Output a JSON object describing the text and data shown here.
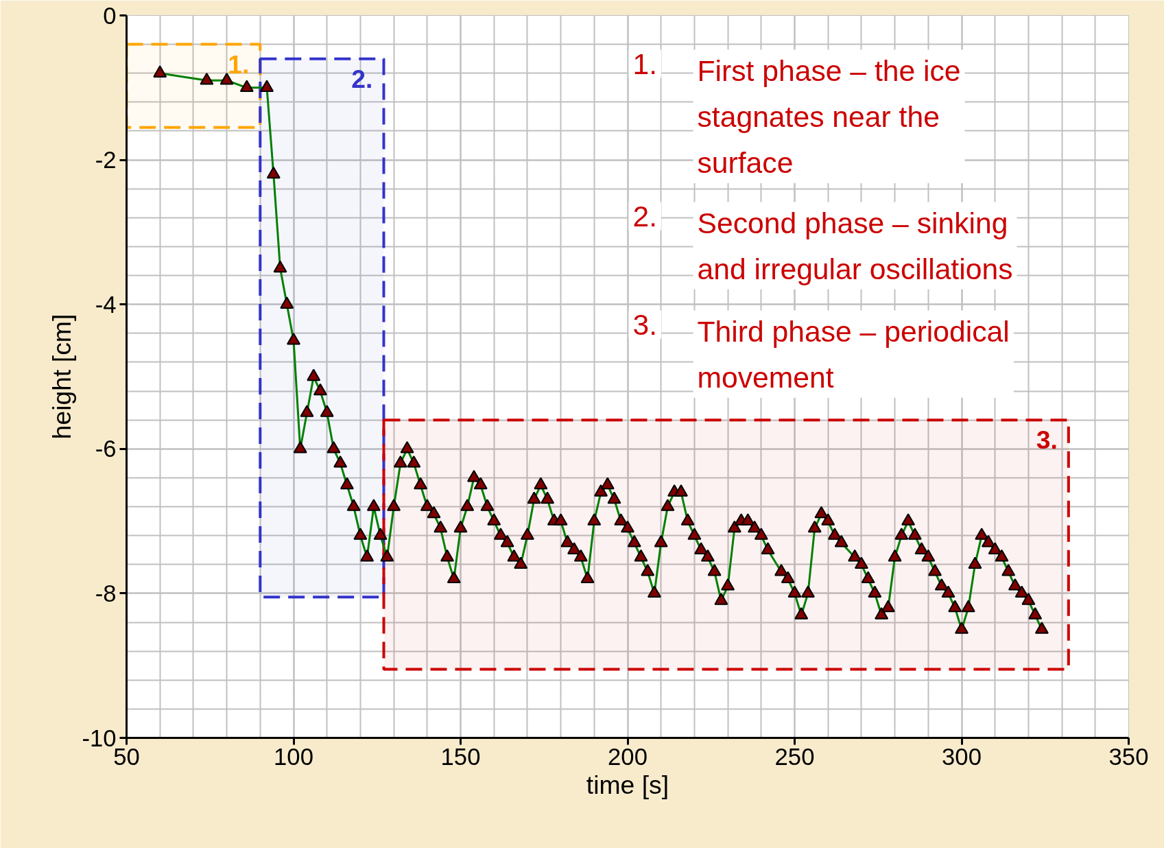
{
  "chart_data": {
    "type": "line",
    "xlabel": "time [s]",
    "ylabel": "height [cm]",
    "x": [
      60,
      74,
      80,
      86,
      92,
      94,
      96,
      98,
      100,
      102,
      104,
      106,
      108,
      110,
      112,
      114,
      116,
      118,
      120,
      122,
      124,
      126,
      128,
      130,
      132,
      134,
      136,
      138,
      140,
      142,
      144,
      146,
      148,
      150,
      152,
      154,
      156,
      158,
      160,
      162,
      164,
      166,
      168,
      170,
      172,
      174,
      176,
      178,
      180,
      182,
      184,
      186,
      188,
      190,
      192,
      194,
      196,
      198,
      200,
      202,
      204,
      206,
      208,
      210,
      212,
      214,
      216,
      218,
      220,
      222,
      224,
      226,
      228,
      230,
      232,
      234,
      236,
      238,
      240,
      242,
      246,
      248,
      250,
      252,
      254,
      256,
      258,
      260,
      262,
      264,
      268,
      270,
      272,
      274,
      276,
      278,
      280,
      282,
      284,
      286,
      288,
      290,
      292,
      294,
      296,
      298,
      300,
      302,
      304,
      306,
      308,
      310,
      312,
      314,
      316,
      318,
      320,
      322,
      324
    ],
    "series": [
      {
        "color": "#008000",
        "values": [
          -0.8,
          -0.9,
          -0.9,
          -1.0,
          -1.0,
          -2.2,
          -3.5,
          -4.0,
          -4.5,
          -6.0,
          -5.5,
          -5.0,
          -5.2,
          -5.5,
          -6.0,
          -6.2,
          -6.5,
          -6.8,
          -7.2,
          -7.5,
          -6.8,
          -7.2,
          -7.5,
          -6.8,
          -6.2,
          -6.0,
          -6.2,
          -6.5,
          -6.8,
          -6.9,
          -7.1,
          -7.5,
          -7.8,
          -7.1,
          -6.8,
          -6.4,
          -6.5,
          -6.8,
          -7.0,
          -7.2,
          -7.3,
          -7.5,
          -7.6,
          -7.2,
          -6.7,
          -6.5,
          -6.7,
          -7.0,
          -7.0,
          -7.3,
          -7.4,
          -7.5,
          -7.8,
          -7.0,
          -6.6,
          -6.5,
          -6.7,
          -7.0,
          -7.1,
          -7.3,
          -7.5,
          -7.7,
          -8.0,
          -7.3,
          -6.8,
          -6.6,
          -6.6,
          -7.0,
          -7.2,
          -7.4,
          -7.5,
          -7.7,
          -8.1,
          -7.9,
          -7.1,
          -7.0,
          -7.0,
          -7.1,
          -7.2,
          -7.4,
          -7.7,
          -7.8,
          -8.0,
          -8.3,
          -8.0,
          -7.1,
          -6.9,
          -7.0,
          -7.2,
          -7.3,
          -7.5,
          -7.6,
          -7.8,
          -8.0,
          -8.3,
          -8.2,
          -7.5,
          -7.2,
          -7.0,
          -7.2,
          -7.4,
          -7.5,
          -7.7,
          -7.9,
          -8.0,
          -8.2,
          -8.5,
          -8.2,
          -7.6,
          -7.2,
          -7.3,
          -7.4,
          -7.5,
          -7.7,
          -7.9,
          -8.0,
          -8.1,
          -8.3,
          -8.5
        ]
      }
    ],
    "xlim": [
      50,
      350
    ],
    "xticks": [
      50,
      100,
      150,
      200,
      250,
      300,
      350
    ],
    "ylim": [
      -10,
      0
    ],
    "yticks": [
      -10,
      -8,
      -6,
      -4,
      -2,
      0
    ],
    "grid": true,
    "marker": "triangle",
    "line_style": "solid",
    "bands": [
      {
        "axis": "x",
        "from": 50,
        "to": 90,
        "label": "1.",
        "color": "#ffa500"
      },
      {
        "axis": "x",
        "from": 90,
        "to": 127,
        "label": "2.",
        "color": "#3333cc"
      },
      {
        "axis": "x",
        "from": 127,
        "to": 332,
        "label": "3.",
        "color": "#cc0000"
      }
    ],
    "annotations": [
      "1.\tFirst phase – the ice\nstagnates near the\nsurface",
      "2.\tSecond phase – sinking\nand irregular oscillations",
      "3.\tThird phase – periodical\nmovement"
    ]
  }
}
